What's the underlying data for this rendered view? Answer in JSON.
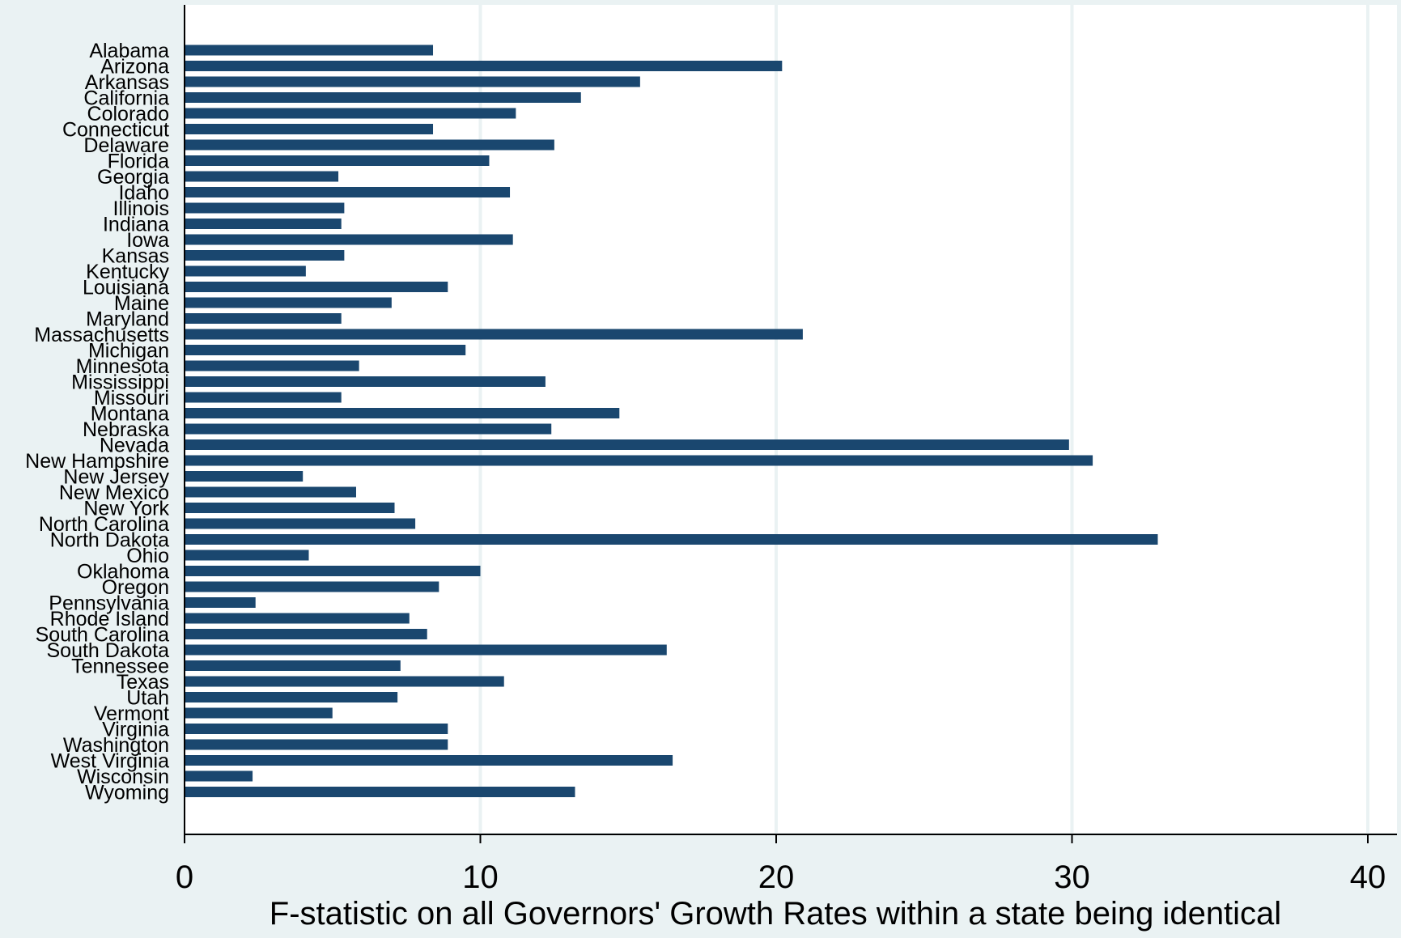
{
  "chart_data": {
    "type": "bar",
    "orientation": "horizontal",
    "xlabel": "F-statistic on all Governors' Growth Rates within a state being identical",
    "ylabel": "",
    "xlim": [
      0,
      40
    ],
    "xticks": [
      0,
      10,
      20,
      30,
      40
    ],
    "grid": true,
    "colors": {
      "bar": "#1a476f",
      "plot_background": "#ffffff",
      "outer_background": "#eaf2f3",
      "gridline": "#eaf2f3",
      "axis": "#000000"
    },
    "categories": [
      "Alabama",
      "Arizona",
      "Arkansas",
      "California",
      "Colorado",
      "Connecticut",
      "Delaware",
      "Florida",
      "Georgia",
      "Idaho",
      "Illinois",
      "Indiana",
      "Iowa",
      "Kansas",
      "Kentucky",
      "Louisiana",
      "Maine",
      "Maryland",
      "Massachusetts",
      "Michigan",
      "Minnesota",
      "Mississippi",
      "Missouri",
      "Montana",
      "Nebraska",
      "Nevada",
      "New Hampshire",
      "New Jersey",
      "New Mexico",
      "New York",
      "North Carolina",
      "North Dakota",
      "Ohio",
      "Oklahoma",
      "Oregon",
      "Pennsylvania",
      "Rhode Island",
      "South Carolina",
      "South Dakota",
      "Tennessee",
      "Texas",
      "Utah",
      "Vermont",
      "Virginia",
      "Washington",
      "West Virginia",
      "Wisconsin",
      "Wyoming"
    ],
    "values": [
      8.4,
      20.2,
      15.4,
      13.4,
      11.2,
      8.4,
      12.5,
      10.3,
      5.2,
      11.0,
      5.4,
      5.3,
      11.1,
      5.4,
      4.1,
      8.9,
      7.0,
      5.3,
      20.9,
      9.5,
      5.9,
      12.2,
      5.3,
      14.7,
      12.4,
      29.9,
      30.7,
      4.0,
      5.8,
      7.1,
      7.8,
      32.9,
      4.2,
      10.0,
      8.6,
      2.4,
      7.6,
      8.2,
      16.3,
      7.3,
      10.8,
      7.2,
      5.0,
      8.9,
      8.9,
      16.5,
      2.3,
      13.2
    ]
  }
}
